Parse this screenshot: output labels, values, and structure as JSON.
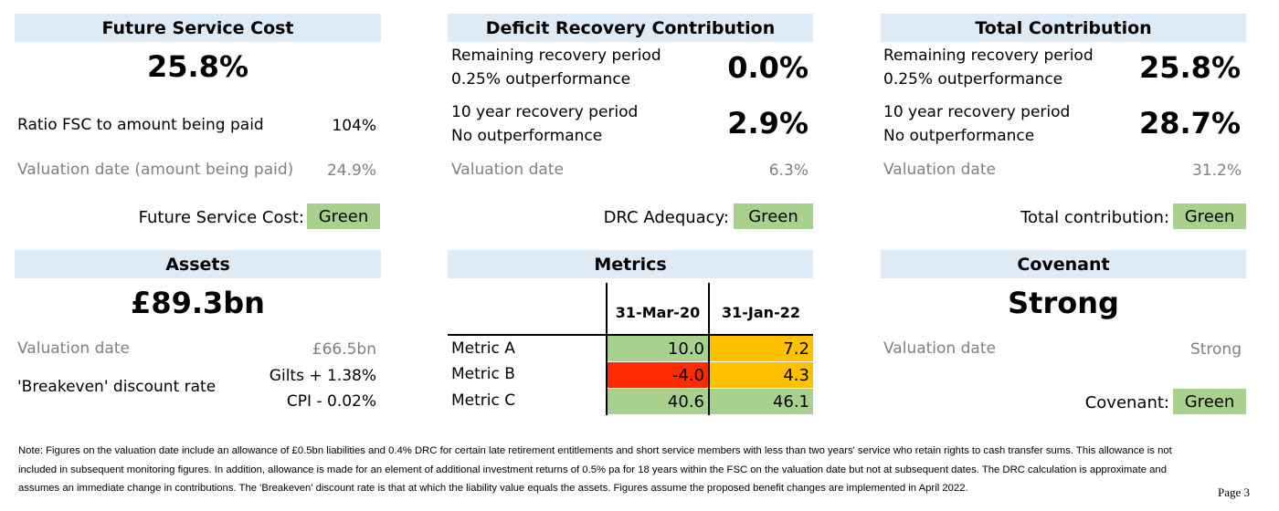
{
  "fsc": {
    "header": "Future Service Cost",
    "big_value": "25.8%",
    "ratio_label": "Ratio FSC to amount being paid",
    "ratio_value": "104%",
    "valuation_label": "Valuation date (amount being paid)",
    "valuation_value": "24.9%",
    "status_label": "Future Service Cost:",
    "status_value": "Green"
  },
  "drc": {
    "header": "Deficit Recovery Contribution",
    "row1_line1": "Remaining recovery period",
    "row1_line2": "0.25% outperformance",
    "row1_value": "0.0%",
    "row2_line1": "10 year recovery period",
    "row2_line2": "No outperformance",
    "row2_value": "2.9%",
    "valuation_label": "Valuation date",
    "valuation_value": "6.3%",
    "status_label": "DRC Adequacy:",
    "status_value": "Green"
  },
  "total": {
    "header": "Total Contribution",
    "row1_line1": "Remaining recovery period",
    "row1_line2": "0.25% outperformance",
    "row1_value": "25.8%",
    "row2_line1": "10 year recovery period",
    "row2_line2": "No outperformance",
    "row2_value": "28.7%",
    "valuation_label": "Valuation date",
    "valuation_value": "31.2%",
    "status_label": "Total contribution:",
    "status_value": "Green"
  },
  "assets": {
    "header": "Assets",
    "big_value": "£89.3bn",
    "valuation_label": "Valuation date",
    "valuation_value": "£66.5bn",
    "breakeven_label": "'Breakeven' discount rate",
    "breakeven_gilts": "Gilts + 1.38%",
    "breakeven_cpi": "CPI - 0.02%"
  },
  "metrics": {
    "header": "Metrics",
    "col1": "31-Mar-20",
    "col2": "31-Jan-22",
    "rows": [
      {
        "label": "Metric A",
        "v1": "10.0",
        "v2": "7.2",
        "c1": "#a9d18e",
        "c2": "#ffc000"
      },
      {
        "label": "Metric B",
        "v1": "-4.0",
        "v2": "4.3",
        "c1": "#ff2a00",
        "c2": "#ffc000"
      },
      {
        "label": "Metric C",
        "v1": "40.6",
        "v2": "46.1",
        "c1": "#a9d18e",
        "c2": "#a9d18e"
      }
    ]
  },
  "covenant": {
    "header": "Covenant",
    "big_value": "Strong",
    "valuation_label": "Valuation date",
    "valuation_value": "Strong",
    "status_label": "Covenant:",
    "status_value": "Green"
  },
  "note": "Note: Figures on the valuation date include an allowance of £0.5bn liabilities and 0.4% DRC for certain late retirement entitlements and short service members with less than two years' service who retain rights to cash transfer sums.  This allowance is not included in subsequent monitoring figures.  In addition, allowance is made for an element of additional investment returns of 0.5% pa for 18 years within the FSC on the valuation date but not at subsequent dates.  The DRC calculation is approximate and assumes an immediate change in contributions.  The 'Breakeven' discount rate is that at which the liability value equals the assets.  Figures assume the proposed benefit changes are implemented in April 2022.",
  "page_label": "Page 3",
  "colors": {
    "header_bg": "#ddebf7",
    "green": "#a9d18e",
    "amber": "#ffc000",
    "red": "#ff2a00"
  }
}
